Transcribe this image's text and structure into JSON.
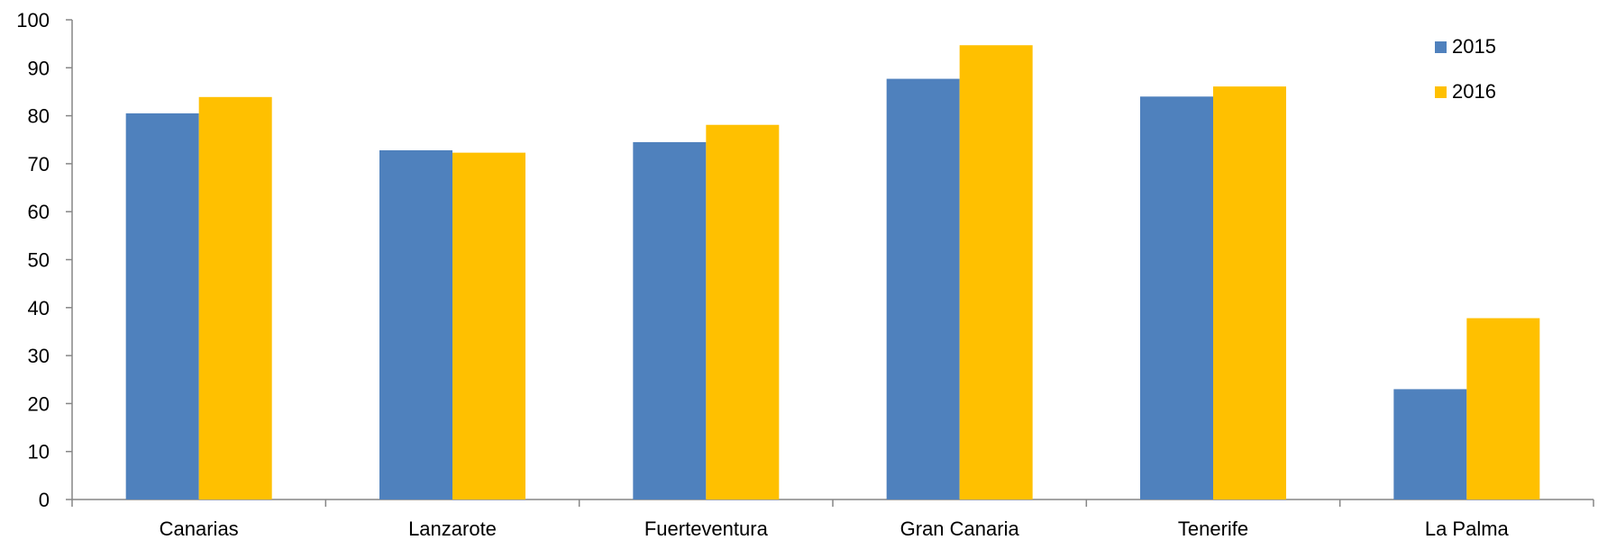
{
  "chart_data": {
    "type": "bar",
    "categories": [
      "Canarias",
      "Lanzarote",
      "Fuerteventura",
      "Gran Canaria",
      "Tenerife",
      "La Palma"
    ],
    "series": [
      {
        "name": "2015",
        "color": "#4f81bd",
        "values": [
          80.5,
          72.8,
          74.5,
          87.7,
          84.0,
          23.0
        ]
      },
      {
        "name": "2016",
        "color": "#ffc000",
        "values": [
          83.9,
          72.3,
          78.1,
          94.7,
          86.1,
          37.8
        ]
      }
    ],
    "ylim": [
      0,
      100
    ],
    "yticks": [
      0,
      10,
      20,
      30,
      40,
      50,
      60,
      70,
      80,
      90,
      100
    ],
    "title": "",
    "xlabel": "",
    "ylabel": "",
    "grid": false,
    "legend_position": "top-right"
  }
}
